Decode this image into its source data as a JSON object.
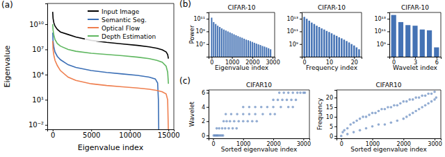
{
  "chart_data": [
    {
      "label": "(a)",
      "type": "line",
      "x_label": "Eigenvalue index",
      "y_label": "Eigenvalue",
      "log": "y",
      "legend": "upper right",
      "xlim": [
        -700,
        15700
      ],
      "ylim": [
        0.003,
        3000000000000.0
      ],
      "xticks": [
        0,
        5000,
        10000,
        15000
      ],
      "yticks": [
        {
          "value": 0.01,
          "label": "10⁻²"
        },
        {
          "value": 10,
          "label": "10¹"
        },
        {
          "value": 10000,
          "label": "10⁴"
        },
        {
          "value": 10000000.0,
          "label": "10⁷"
        },
        {
          "value": 10000000000.0,
          "label": "10¹⁰"
        }
      ],
      "series": [
        {
          "name": "Input Image",
          "color": "#000000",
          "x": [
            0,
            50,
            150,
            300,
            600,
            1000,
            2000,
            3000,
            5000,
            7000,
            9000,
            11000,
            12500,
            13500,
            14200,
            14700,
            14900,
            15000
          ],
          "values": [
            300000000000.0,
            50000000000.0,
            15000000000.0,
            6000000000.0,
            2500000000.0,
            1200000000.0,
            600000000.0,
            300000000.0,
            120000000.0,
            70000000.0,
            45000000.0,
            30000000.0,
            20000000.0,
            14000000.0,
            9000000.0,
            5000000.0,
            2500000.0,
            800000.0
          ]
        },
        {
          "name": "Semantic Seg.",
          "color": "#3b6fb6",
          "x": [
            0,
            50,
            150,
            300,
            600,
            1000,
            2000,
            3000,
            5000,
            7000,
            9000,
            11000,
            12500,
            13300,
            13600,
            13700,
            13750
          ],
          "values": [
            1000000000.0,
            100000000.0,
            20000000.0,
            5000000.0,
            1500000.0,
            600000.0,
            150000.0,
            70000.0,
            30000.0,
            18000.0,
            12000.0,
            8000,
            5000,
            3000,
            1000,
            10,
            0.001
          ]
        },
        {
          "name": "Optical Flow",
          "color": "#ef7f4f",
          "x": [
            0,
            50,
            150,
            300,
            600,
            1000,
            2000,
            3000,
            5000,
            7000,
            9000,
            11000,
            12500,
            13500,
            14200,
            14700,
            14900,
            15000
          ],
          "values": [
            100000000.0,
            10000000.0,
            2000000.0,
            500000.0,
            120000.0,
            30000.0,
            5000,
            2000,
            800,
            500,
            350,
            250,
            180,
            130,
            90,
            50,
            10,
            0.001
          ]
        },
        {
          "name": "Depth Estimation",
          "color": "#5fb760",
          "x": [
            0,
            50,
            150,
            300,
            600,
            1000,
            2000,
            3000,
            5000,
            7000,
            9000,
            11000,
            12500,
            13500,
            14200,
            14700,
            14900,
            15000
          ],
          "values": [
            10000000000.0,
            2000000000.0,
            500000000.0,
            150000000.0,
            50000000.0,
            25000000.0,
            10000000.0,
            6000000.0,
            3500000.0,
            2500000.0,
            1800000.0,
            1200000.0,
            800000.0,
            500000.0,
            300000.0,
            100000.0,
            20000.0,
            800
          ]
        }
      ]
    },
    {
      "label": "(b)",
      "type": "bar",
      "title": "CIFAR-10",
      "x_label": "Eigenvalue index",
      "y_label": "Power",
      "log": "y",
      "color": "#4472b4",
      "xlim": [
        -150,
        3100
      ],
      "ylim": [
        100000.0,
        1000000000000.0
      ],
      "xticks": [
        0,
        1000,
        2000,
        3000
      ],
      "yticks": [
        {
          "value": 10000000.0,
          "label": "10⁷"
        },
        {
          "value": 1000000000.0,
          "label": "10⁹"
        },
        {
          "value": 100000000000.0,
          "label": "10¹¹"
        }
      ],
      "x": [
        0,
        100,
        200,
        300,
        400,
        500,
        600,
        700,
        800,
        900,
        1000,
        1100,
        1200,
        1300,
        1400,
        1500,
        1600,
        1700,
        1800,
        1900,
        2000,
        2100,
        2200,
        2300,
        2400,
        2500,
        2600,
        2700,
        2800,
        2900
      ],
      "values": [
        150000000000.0,
        30000000000.0,
        15000000000.0,
        8000000000.0,
        5000000000.0,
        3000000000.0,
        2000000000.0,
        1400000000.0,
        1000000000.0,
        700000000.0,
        500000000.0,
        350000000.0,
        250000000.0,
        180000000.0,
        130000000.0,
        100000000.0,
        70000000.0,
        50000000.0,
        40000000.0,
        30000000.0,
        22000000.0,
        16000000.0,
        12000000.0,
        9000000.0,
        7000000.0,
        5000000.0,
        4000000.0,
        3000000.0,
        2200000.0,
        1500000.0
      ]
    },
    {
      "type": "bar",
      "title": "CIFAR-10",
      "x_label": "Frequency index",
      "log": "y",
      "color": "#4472b4",
      "xlim": [
        -1,
        23
      ],
      "ylim": [
        10000000.0,
        100000000000000.0
      ],
      "xticks": [
        0,
        10,
        20
      ],
      "yticks": [
        {
          "value": 1000000000.0,
          "label": "10⁹"
        },
        {
          "value": 100000000000.0,
          "label": "10¹¹"
        },
        {
          "value": 10000000000000.0,
          "label": "10¹³"
        }
      ],
      "x": [
        0,
        1,
        2,
        3,
        4,
        5,
        6,
        7,
        8,
        9,
        10,
        11,
        12,
        13,
        14,
        15,
        16,
        17,
        18,
        19,
        20,
        21,
        22
      ],
      "values": [
        20000000000000.0,
        10000000000000.0,
        5000000000000.0,
        2500000000000.0,
        1500000000000.0,
        800000000000.0,
        500000000000.0,
        300000000000.0,
        200000000000.0,
        120000000000.0,
        80000000000.0,
        50000000000.0,
        30000000000.0,
        20000000000.0,
        12000000000.0,
        8000000000.0,
        5000000000.0,
        3000000000.0,
        1800000000.0,
        1000000000.0,
        600000000.0,
        300000000.0,
        150000000.0
      ]
    },
    {
      "type": "bar",
      "title": "CIFAR-10",
      "x_label": "Wavelet index",
      "log": "y",
      "color": "#4472b4",
      "xlim": [
        -0.6,
        6.6
      ],
      "ylim": [
        10000000.0,
        100000000000000.0
      ],
      "xticks": [
        0,
        3,
        6
      ],
      "yticks": [
        {
          "value": 1000000000.0,
          "label": "10⁹"
        },
        {
          "value": 100000000000.0,
          "label": "10¹¹"
        },
        {
          "value": 10000000000000.0,
          "label": "10¹³"
        }
      ],
      "x": [
        0,
        1,
        2,
        3,
        4,
        5,
        6
      ],
      "values": [
        40000000000000.0,
        3000000000000.0,
        1000000000000.0,
        800000000000.0,
        200000000000.0,
        150000000000.0,
        300000000.0
      ]
    },
    {
      "label": "(c)",
      "type": "scatter",
      "title": "CIFAR10",
      "x_label": "Sorted eigenvalue index",
      "y_label": "Wavelet",
      "color": "#4a74b4",
      "marker": "circle",
      "xlim": [
        -150,
        3200
      ],
      "ylim": [
        -0.4,
        6.4
      ],
      "xticks": [
        0,
        1000,
        2000,
        3000
      ],
      "yticks": [
        0,
        2,
        4,
        6
      ],
      "x": [
        20,
        60,
        100,
        140,
        180,
        230,
        280,
        330,
        120,
        200,
        300,
        400,
        520,
        650,
        780,
        350,
        450,
        560,
        700,
        850,
        1000,
        1150,
        1300,
        1450,
        420,
        600,
        800,
        1000,
        1200,
        1400,
        1650,
        1900,
        2050,
        1000,
        1200,
        1400,
        1600,
        1800,
        2000,
        2250,
        2500,
        2650,
        2000,
        2150,
        2300,
        2450,
        2600,
        2750,
        2200,
        2350,
        2500,
        2650,
        2800,
        2900,
        3000,
        3050
      ],
      "values": [
        0,
        0,
        0,
        0,
        0,
        0,
        0,
        0,
        1,
        1,
        1,
        1,
        1,
        1,
        1,
        2,
        2,
        2,
        2,
        2,
        2,
        2,
        2,
        2,
        3,
        3,
        3,
        3,
        3,
        3,
        3,
        3,
        3,
        4,
        4,
        4,
        4,
        4,
        4,
        4,
        4,
        4,
        5,
        5,
        5,
        5,
        5,
        5,
        6,
        6,
        6,
        6,
        6,
        6,
        6,
        6
      ]
    },
    {
      "type": "scatter",
      "title": "CIFAR10",
      "x_label": "Sorted eigenvalue index",
      "y_label": "Frequency",
      "color": "#4a74b4",
      "marker": "circle",
      "xlim": [
        -150,
        3200
      ],
      "ylim": [
        -1.2,
        24
      ],
      "xticks": [
        0,
        1000,
        2000,
        3000
      ],
      "yticks": [
        0,
        5,
        10,
        15,
        20
      ],
      "x": [
        0,
        50,
        100,
        200,
        300,
        400,
        500,
        600,
        700,
        800,
        900,
        1000,
        1100,
        1200,
        1300,
        1400,
        1500,
        1600,
        1700,
        1800,
        1900,
        2000,
        2100,
        2200,
        2300,
        2400,
        2500,
        2600,
        2700,
        2800,
        2900,
        3000,
        200,
        400,
        600,
        800,
        1000,
        1200,
        1400,
        1600,
        1800,
        2000,
        2100,
        2200,
        2300,
        2400,
        2500,
        2600,
        2700,
        2800,
        2900,
        3000,
        3050
      ],
      "values": [
        0,
        2,
        3,
        4,
        6,
        7,
        8,
        9,
        10,
        10,
        11,
        12,
        12,
        13,
        14,
        14,
        15,
        15,
        16,
        16,
        17,
        18,
        18,
        19,
        19,
        20,
        20,
        21,
        21,
        22,
        22,
        23,
        1,
        2,
        3,
        4,
        5,
        6,
        6,
        7,
        8,
        9,
        10,
        11,
        12,
        13,
        14,
        15,
        16,
        17,
        18,
        19,
        20
      ]
    }
  ]
}
